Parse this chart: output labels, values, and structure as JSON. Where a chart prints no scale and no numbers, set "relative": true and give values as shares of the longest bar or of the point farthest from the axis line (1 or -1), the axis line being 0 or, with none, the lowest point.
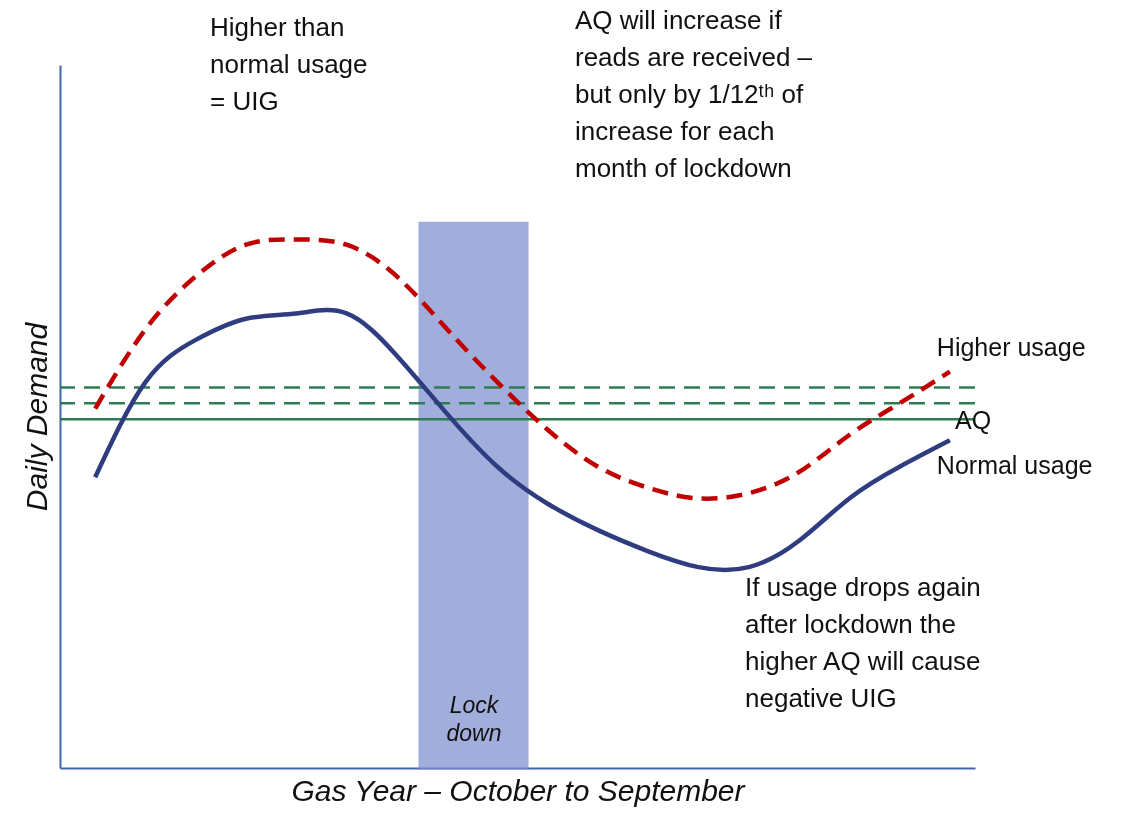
{
  "chart_data": {
    "type": "line",
    "relative": true,
    "xlabel": "Gas Year – October to September",
    "ylabel": "Daily Demand",
    "categories": [
      null,
      null,
      null,
      null,
      null,
      null,
      null,
      null,
      null,
      null,
      null,
      null,
      null,
      null,
      null,
      null,
      null,
      null
    ],
    "series": [
      {
        "name": "Higher usage",
        "color": "#c00000",
        "line_style": "dashed",
        "values": [
          0.68,
          0.83,
          0.93,
          0.99,
          1,
          0.99,
          0.93,
          0.83,
          0.73,
          0.64,
          0.57,
          0.53,
          0.51,
          0.52,
          0.56,
          0.63,
          0.69,
          0.75
        ]
      },
      {
        "name": "Normal usage",
        "color": "#2f3d80",
        "line_style": "solid",
        "values": [
          0.55,
          0.73,
          0.81,
          0.85,
          0.86,
          0.86,
          0.78,
          0.67,
          0.57,
          0.5,
          0.45,
          0.41,
          0.38,
          0.38,
          0.43,
          0.51,
          0.57,
          0.62
        ]
      }
    ],
    "ref_lines": [
      {
        "axis": "y",
        "value": 0.66,
        "label": "AQ",
        "color": "#2e7d52",
        "line_style": "solid"
      },
      {
        "axis": "y",
        "value": 0.69,
        "color": "#2e7d52",
        "line_style": "dashed"
      },
      {
        "axis": "y",
        "value": 0.72,
        "color": "#2e7d52",
        "line_style": "dashed"
      }
    ],
    "annotations": [
      "Higher than\nnormal usage\n= UIG",
      "AQ will increase if\nreads are received –\nbut only by 1/12ᵗʰ of\nincrease for each\nmonth of lockdown",
      "If usage drops again\nafter lockdown the\nhigher AQ will cause\nnegative UIG",
      "Lock\ndown"
    ],
    "grid": false,
    "marker": "none"
  }
}
